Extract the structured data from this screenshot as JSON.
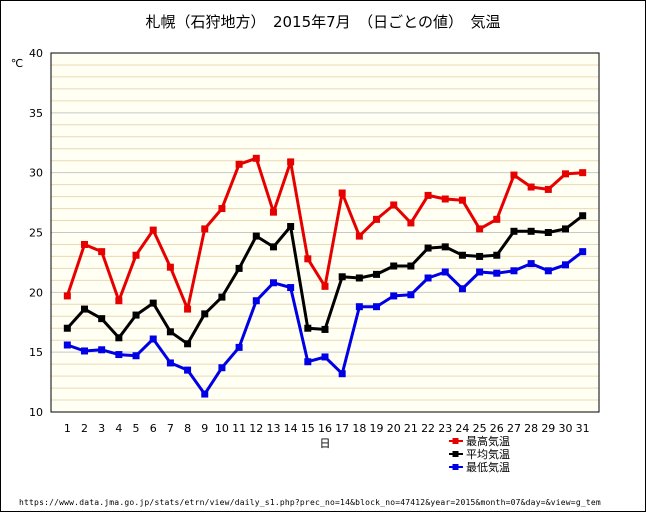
{
  "title": "札幌（石狩地方）　2015年7月　（日ごとの値）　気温",
  "url_text": "https://www.data.jma.go.jp/stats/etrn/view/daily_s1.php?prec_no=14&block_no=47412&year=2015&month=07&day=&view=g_tem",
  "chart_data": {
    "type": "line",
    "title": "札幌（石狩地方）　2015年7月　（日ごとの値）　気温",
    "xlabel": "日",
    "ylabel": "℃",
    "ylim": [
      10,
      40
    ],
    "yticks": [
      10,
      15,
      20,
      25,
      30,
      35,
      40
    ],
    "x": [
      1,
      2,
      3,
      4,
      5,
      6,
      7,
      8,
      9,
      10,
      11,
      12,
      13,
      14,
      15,
      16,
      17,
      18,
      19,
      20,
      21,
      22,
      23,
      24,
      25,
      26,
      27,
      28,
      29,
      30,
      31
    ],
    "grid": true,
    "legend_position": "bottom-right",
    "series": [
      {
        "name": "最高気温",
        "color": "#e60000",
        "values": [
          19.7,
          24.0,
          23.4,
          19.3,
          23.1,
          25.2,
          22.1,
          18.6,
          25.3,
          27.0,
          30.7,
          31.2,
          26.7,
          30.9,
          22.8,
          20.5,
          28.3,
          24.7,
          26.1,
          27.3,
          25.8,
          28.1,
          27.8,
          27.7,
          25.3,
          26.1,
          29.8,
          28.8,
          28.6,
          29.9,
          30.0
        ]
      },
      {
        "name": "平均気温",
        "color": "#000000",
        "values": [
          17.0,
          18.6,
          17.8,
          16.2,
          18.1,
          19.1,
          16.7,
          15.7,
          18.2,
          19.6,
          22.0,
          24.7,
          23.8,
          25.5,
          17.0,
          16.9,
          21.3,
          21.2,
          21.5,
          22.2,
          22.2,
          23.7,
          23.8,
          23.1,
          23.0,
          23.1,
          25.1,
          25.1,
          25.0,
          25.3,
          26.4
        ]
      },
      {
        "name": "最低気温",
        "color": "#0000e6",
        "values": [
          15.6,
          15.1,
          15.2,
          14.8,
          14.7,
          16.1,
          14.1,
          13.5,
          11.5,
          13.7,
          15.4,
          19.3,
          20.8,
          20.4,
          14.2,
          14.6,
          13.2,
          18.8,
          18.8,
          19.7,
          19.8,
          21.2,
          21.7,
          20.3,
          21.7,
          21.6,
          21.8,
          22.4,
          21.8,
          22.3,
          23.4
        ]
      }
    ]
  }
}
